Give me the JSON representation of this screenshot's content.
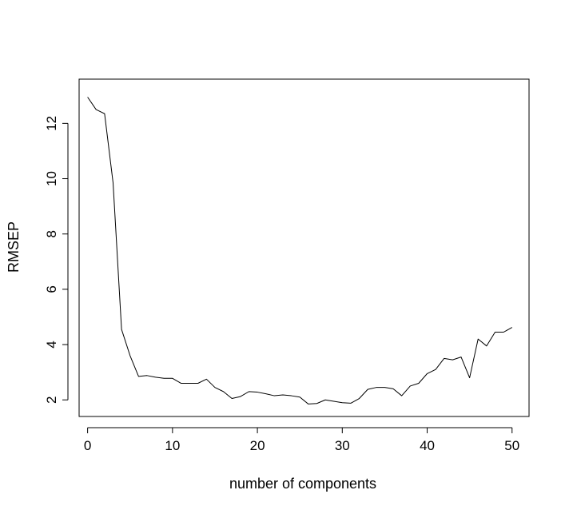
{
  "chart_data": {
    "type": "line",
    "title": "",
    "xlabel": "number of components",
    "ylabel": "RMSEP",
    "xlim": [
      -1,
      52
    ],
    "ylim": [
      1.4,
      13.6
    ],
    "xticks": [
      0,
      10,
      20,
      30,
      40,
      50
    ],
    "yticks": [
      2,
      4,
      6,
      8,
      10,
      12
    ],
    "grid": false,
    "legend": "none",
    "series": [
      {
        "color": "#000000",
        "x": [
          0,
          1,
          2,
          3,
          4,
          5,
          6,
          7,
          8,
          9,
          10,
          11,
          12,
          13,
          14,
          15,
          16,
          17,
          18,
          19,
          20,
          21,
          22,
          23,
          24,
          25,
          26,
          27,
          28,
          29,
          30,
          31,
          32,
          33,
          34,
          35,
          36,
          37,
          38,
          39,
          40,
          41,
          42,
          43,
          44,
          45,
          46,
          47,
          48,
          49,
          50
        ],
        "values": [
          12.95,
          12.5,
          12.35,
          9.85,
          4.55,
          3.6,
          2.85,
          2.88,
          2.82,
          2.78,
          2.78,
          2.6,
          2.6,
          2.6,
          2.75,
          2.45,
          2.3,
          2.05,
          2.12,
          2.3,
          2.28,
          2.22,
          2.15,
          2.18,
          2.15,
          2.1,
          1.85,
          1.87,
          2.0,
          1.95,
          1.9,
          1.88,
          2.05,
          2.38,
          2.45,
          2.45,
          2.4,
          2.15,
          2.5,
          2.6,
          2.95,
          3.1,
          3.5,
          3.45,
          3.55,
          2.8,
          4.2,
          3.95,
          4.45,
          4.45,
          4.62
        ]
      }
    ]
  }
}
